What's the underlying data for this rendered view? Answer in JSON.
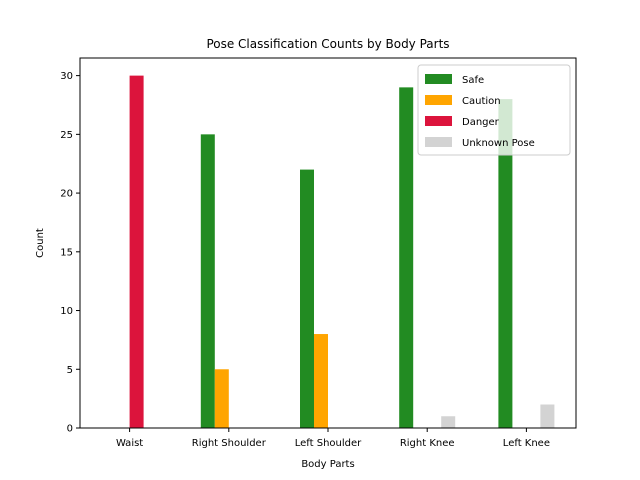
{
  "chart_data": {
    "type": "bar",
    "title": "Pose Classification Counts by Body Parts",
    "xlabel": "Body Parts",
    "ylabel": "Count",
    "ylim": [
      0,
      31.5
    ],
    "yticks": [
      0,
      5,
      10,
      15,
      20,
      25,
      30
    ],
    "categories": [
      "Waist",
      "Right Shoulder",
      "Left Shoulder",
      "Right Knee",
      "Left Knee"
    ],
    "series": [
      {
        "name": "Safe",
        "color": "#228b22",
        "values": [
          0,
          25,
          22,
          29,
          28
        ]
      },
      {
        "name": "Caution",
        "color": "#ffa500",
        "values": [
          0,
          5,
          8,
          0,
          0
        ]
      },
      {
        "name": "Danger",
        "color": "#dc143c",
        "values": [
          30,
          0,
          0,
          0,
          0
        ]
      },
      {
        "name": "Unknown Pose",
        "color": "#d3d3d3",
        "values": [
          0,
          0,
          0,
          1,
          2
        ]
      }
    ],
    "legend_position": "top-right",
    "grid": false
  }
}
